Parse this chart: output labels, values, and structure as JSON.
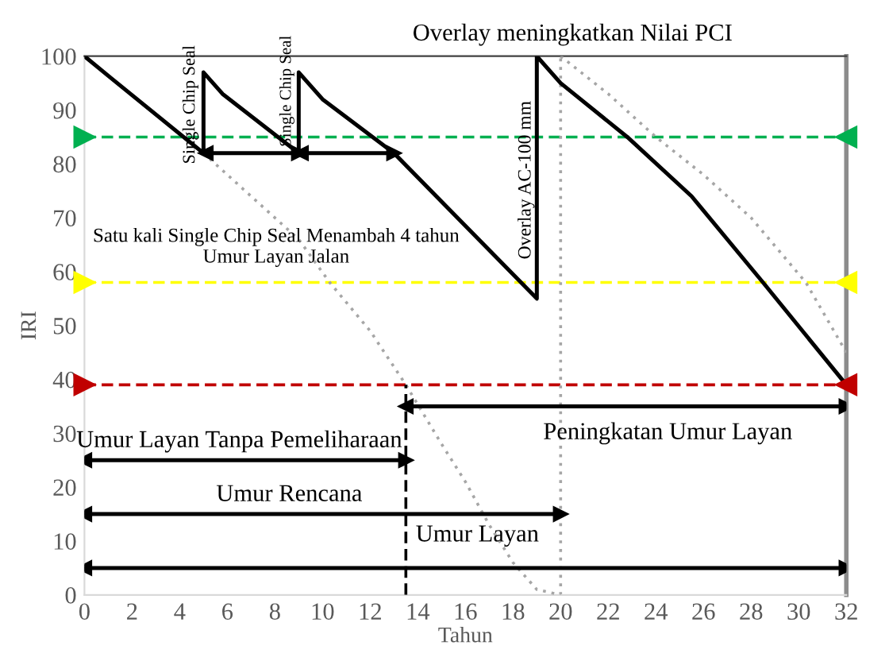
{
  "chart_data": {
    "type": "line",
    "xlabel": "Tahun",
    "ylabel": "IRI",
    "xlim": [
      0,
      32
    ],
    "xticks": [
      0,
      2,
      4,
      6,
      8,
      10,
      12,
      14,
      16,
      18,
      20,
      22,
      24,
      26,
      28,
      30,
      32
    ],
    "ylim": [
      0,
      100
    ],
    "yticks": [
      0,
      10,
      20,
      30,
      40,
      50,
      60,
      70,
      80,
      90,
      100
    ],
    "grid": false,
    "series": [
      {
        "color": "#000000",
        "line_style": "solid",
        "x": [
          0,
          1.1,
          5,
          5,
          5.8,
          9,
          9,
          10,
          13,
          19,
          19,
          20,
          22.8,
          25.5,
          28.5,
          32
        ],
        "values": [
          100,
          96,
          82,
          97,
          93,
          82,
          97,
          92,
          82,
          55,
          100,
          95,
          85,
          74,
          58,
          39
        ]
      },
      {
        "color": "#a6a6a6",
        "line_style": "dotted",
        "x": [
          5,
          7,
          9,
          10.3,
          12,
          13.5,
          15,
          16,
          17,
          18,
          19,
          20
        ],
        "values": [
          82,
          74,
          66,
          58,
          49,
          39,
          28,
          21,
          13,
          6,
          1,
          0
        ]
      },
      {
        "color": "#a6a6a6",
        "line_style": "dotted",
        "x": [
          20,
          22,
          24,
          26,
          28,
          30.3,
          32
        ],
        "values": [
          100,
          93,
          85,
          78,
          70,
          58,
          45
        ]
      },
      {
        "color": "#000000",
        "line_style": "dashed",
        "x": [
          13.5,
          13.5
        ],
        "values": [
          0,
          39
        ]
      },
      {
        "color": "#000000",
        "line_style": "solid",
        "marker": "triangle",
        "x": [
          5.1,
          9
        ],
        "values": [
          82,
          82
        ]
      },
      {
        "color": "#000000",
        "line_style": "solid",
        "marker": "triangle",
        "x": [
          9.1,
          13
        ],
        "values": [
          82,
          82
        ]
      },
      {
        "color": "#000000",
        "line_style": "solid",
        "marker": "triangle",
        "x": [
          13.5,
          32
        ],
        "values": [
          35,
          35
        ]
      },
      {
        "color": "#000000",
        "line_style": "solid",
        "marker": "triangle",
        "x": [
          0,
          13.5
        ],
        "values": [
          25,
          25
        ]
      },
      {
        "color": "#000000",
        "line_style": "solid",
        "marker": "triangle",
        "x": [
          0,
          20
        ],
        "values": [
          15,
          15
        ]
      },
      {
        "color": "#000000",
        "line_style": "solid",
        "marker": "triangle",
        "x": [
          0,
          32
        ],
        "values": [
          5,
          5
        ]
      }
    ],
    "ref_lines": [
      {
        "axis": "y",
        "value": 85,
        "color": "#00b050",
        "line_style": "dashed"
      },
      {
        "axis": "y",
        "value": 58,
        "color": "#ffff00",
        "line_style": "dashed"
      },
      {
        "axis": "y",
        "value": 39,
        "color": "#c00000",
        "line_style": "dashed"
      },
      {
        "axis": "x",
        "value": 20,
        "color": "#a6a6a6",
        "line_style": "dotted"
      }
    ],
    "annotations": [
      "Overlay meningkatkan Nilai PCI",
      "Single Chip Seal",
      "Single Chip Seal",
      "Overlay AC-100 mm",
      "Satu kali Single Chip Seal Menambah 4 tahun\nUmur Layan Jalan",
      "Umur Layan Tanpa Pemeliharaan",
      "Umur Rencana",
      "Umur Layan",
      "Peningkatan Umur Layan"
    ]
  }
}
